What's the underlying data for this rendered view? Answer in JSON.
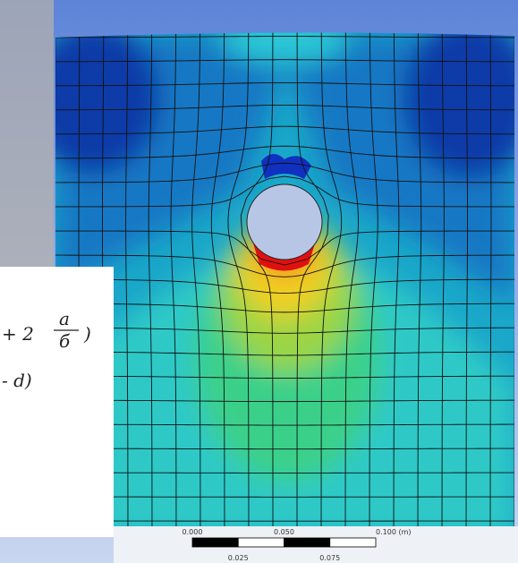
{
  "scale_bar": {
    "top_labels": [
      "0.000",
      "0.050",
      "0.100 (m)"
    ],
    "bottom_labels": [
      "0.025",
      "0.075"
    ]
  },
  "handwriting": {
    "line1": [
      "+ 2",
      "a",
      "б",
      ")"
    ],
    "line2": "- d)"
  }
}
